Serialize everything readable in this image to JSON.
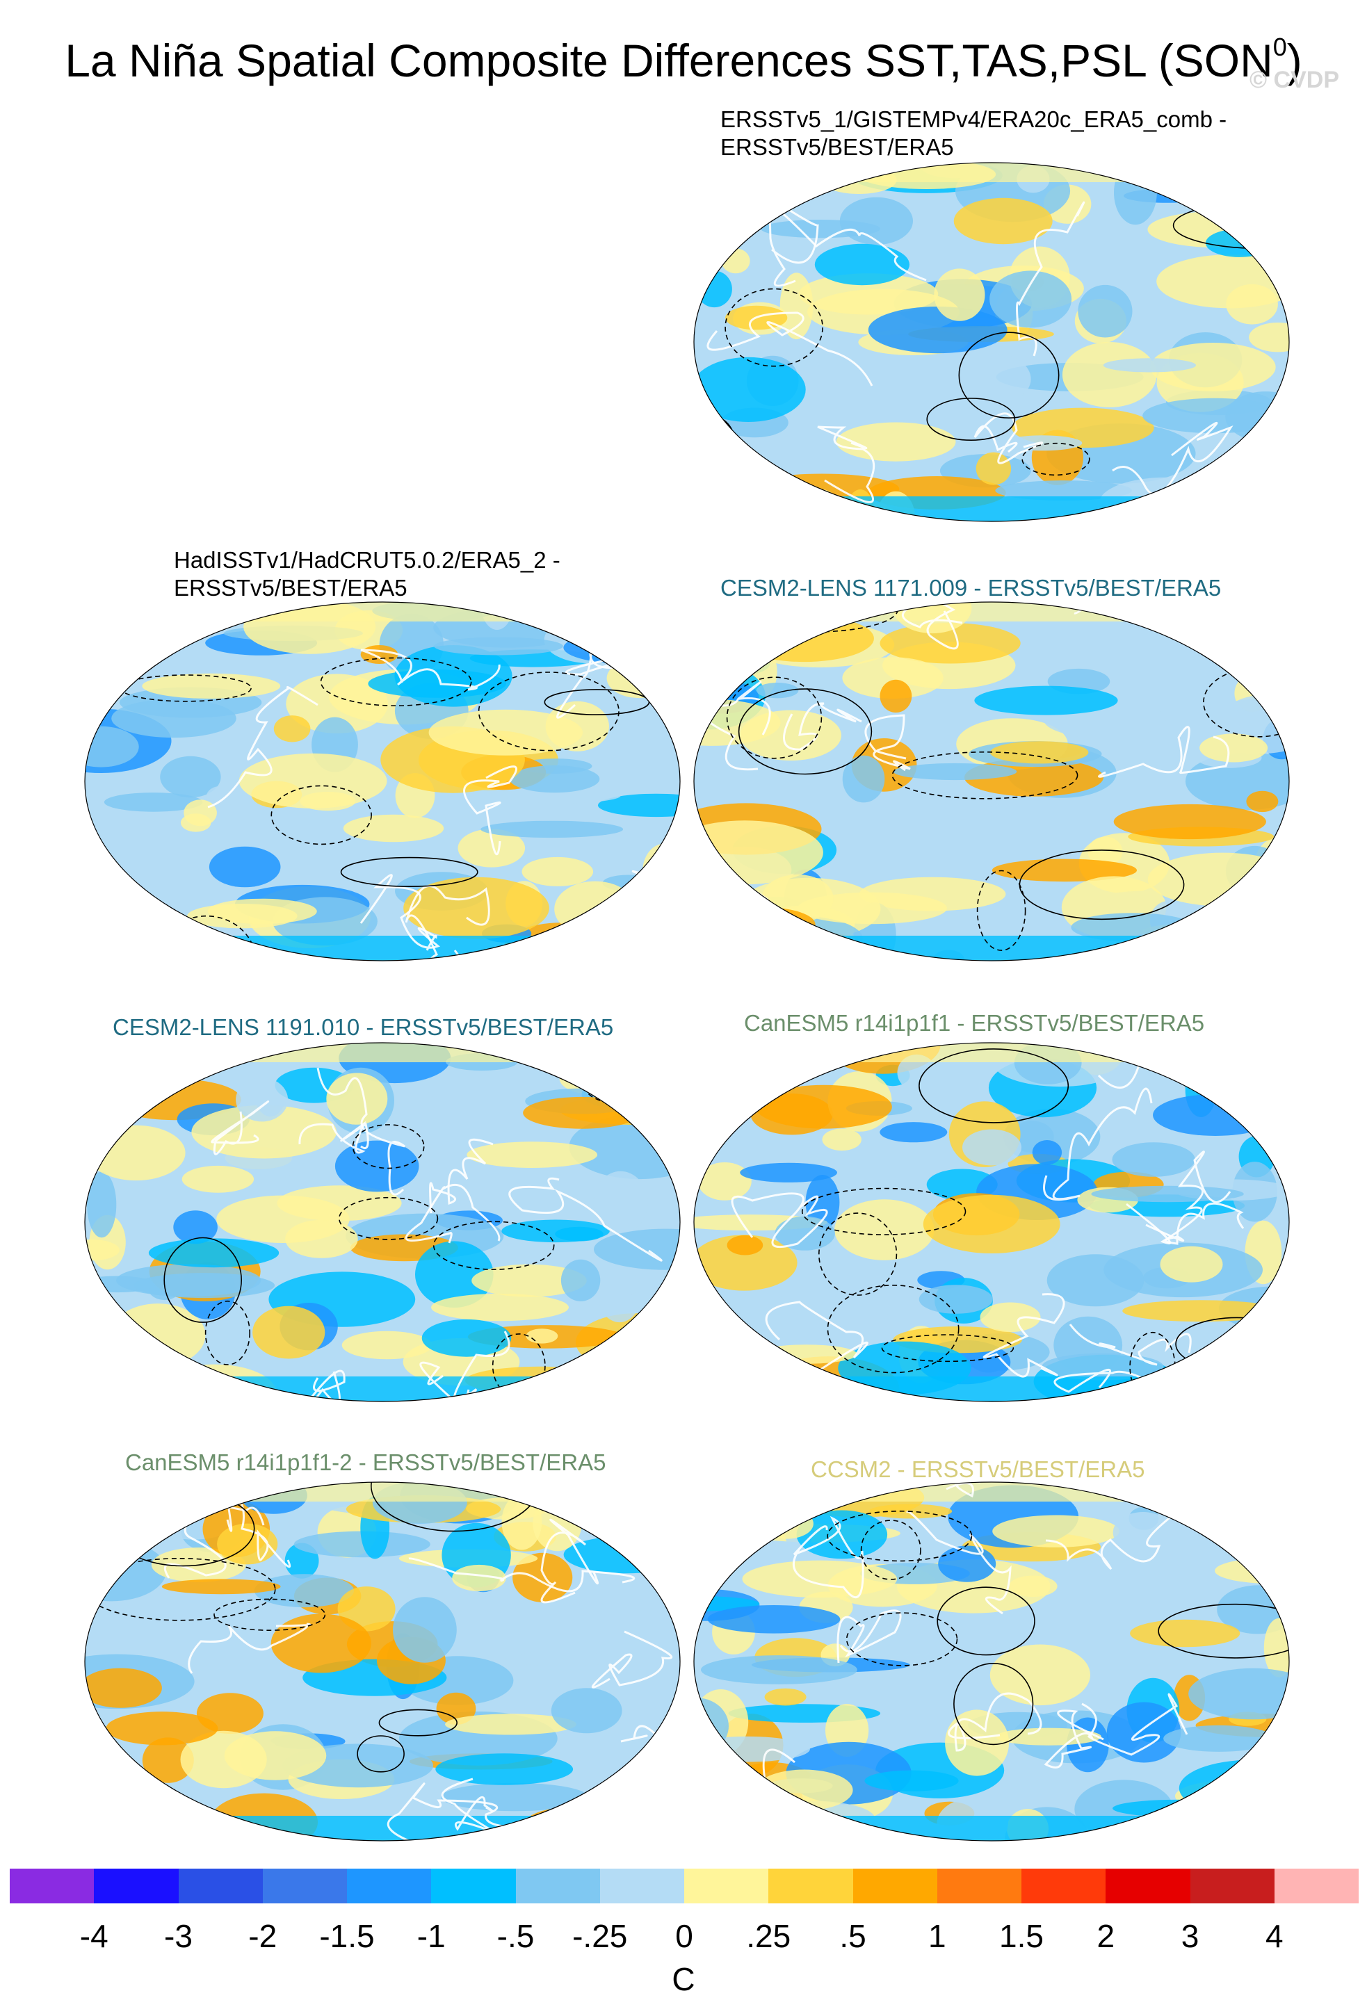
{
  "title": {
    "text": "La Niña Spatial Composite Differences SST,TAS,PSL (SON",
    "sup": "0",
    "close": ")"
  },
  "watermark": "© CVDP",
  "panels": [
    {
      "label": "ERSSTv5_1/GISTEMPv4/ERA20c_ERA5_comb -\nERSSTv5/BEST/ERA5",
      "label_color": "#000000"
    },
    {
      "label": "HadISSTv1/HadCRUT5.0.2/ERA5_2 -\nERSSTv5/BEST/ERA5",
      "label_color": "#000000"
    },
    {
      "label": "CESM2-LENS 1171.009 - ERSSTv5/BEST/ERA5",
      "label_color": "#1f6b82"
    },
    {
      "label": "CESM2-LENS 1191.010 - ERSSTv5/BEST/ERA5",
      "label_color": "#1f6b82"
    },
    {
      "label": "CanESM5 r14i1p1f1 - ERSSTv5/BEST/ERA5",
      "label_color": "#6b8f6b"
    },
    {
      "label": "CanESM5 r14i1p1f1-2 - ERSSTv5/BEST/ERA5",
      "label_color": "#6b8f6b"
    },
    {
      "label": "CCSM2 - ERSSTv5/BEST/ERA5",
      "label_color": "#d6cc7a"
    }
  ],
  "colorbar": {
    "colors": [
      "#8a2be2",
      "#1a10ff",
      "#2a50e6",
      "#3a78ea",
      "#1e96ff",
      "#00bfff",
      "#7fc8f2",
      "#b4dcf5",
      "#fff59a",
      "#ffd43a",
      "#ffa800",
      "#ff7a10",
      "#ff3a0a",
      "#e60000",
      "#c81e1e",
      "#ffb4b4"
    ],
    "labels": [
      "-4",
      "-3",
      "-2",
      "-1.5",
      "-1",
      "-.5",
      "-.25",
      "0",
      ".25",
      ".5",
      "1",
      "1.5",
      "2",
      "3",
      "4"
    ],
    "unit": "C"
  }
}
